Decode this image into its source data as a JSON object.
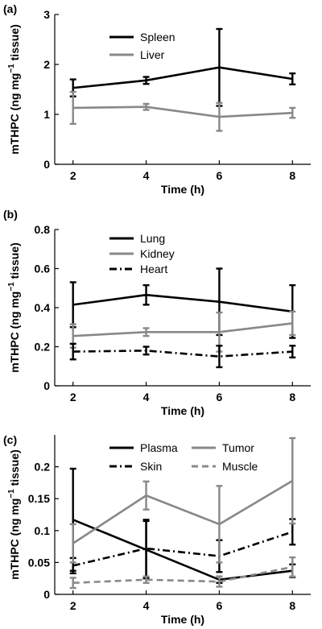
{
  "chart_data": [
    {
      "panel_label": "(a)",
      "type": "line",
      "xlabel": "Time (h)",
      "ylabel_main": "mTHPC (ng mg",
      "ylabel_sup": "−1",
      "ylabel_tail": " tissue)",
      "x": [
        2,
        4,
        6,
        8
      ],
      "xticks": [
        2,
        4,
        6,
        8
      ],
      "xlim": [
        1.5,
        8.5
      ],
      "ylim": [
        0,
        3
      ],
      "yticks": [
        0,
        1,
        2,
        3
      ],
      "ytick_labels": [
        "0",
        "1",
        "2",
        "3"
      ],
      "legend_placement": "top-left",
      "series": [
        {
          "name": "Spleen",
          "color": "#000000",
          "dash": "solid",
          "values": [
            1.53,
            1.68,
            1.94,
            1.71
          ],
          "errors": [
            0.17,
            0.07,
            0.77,
            0.11
          ]
        },
        {
          "name": "Liver",
          "color": "#888888",
          "dash": "solid",
          "values": [
            1.13,
            1.15,
            0.95,
            1.03
          ],
          "errors": [
            0.32,
            0.06,
            0.28,
            0.1
          ]
        }
      ]
    },
    {
      "panel_label": "(b)",
      "type": "line",
      "xlabel": "Time (h)",
      "ylabel_main": "mTHPC (ng mg",
      "ylabel_sup": "−1",
      "ylabel_tail": " tissue)",
      "x": [
        2,
        4,
        6,
        8
      ],
      "xticks": [
        2,
        4,
        6,
        8
      ],
      "xlim": [
        1.5,
        8.5
      ],
      "ylim": [
        0,
        0.8
      ],
      "yticks": [
        0,
        0.2,
        0.4,
        0.6,
        0.8
      ],
      "ytick_labels": [
        "0",
        "0.2",
        "0.4",
        "0.6",
        "0.8"
      ],
      "legend_placement": "top-left",
      "series": [
        {
          "name": "Lung",
          "color": "#000000",
          "dash": "solid",
          "values": [
            0.415,
            0.465,
            0.43,
            0.38
          ],
          "errors": [
            0.115,
            0.05,
            0.17,
            0.135
          ]
        },
        {
          "name": "Kidney",
          "color": "#888888",
          "dash": "solid",
          "values": [
            0.255,
            0.275,
            0.275,
            0.32
          ],
          "errors": [
            0.06,
            0.02,
            0.1,
            0.06
          ]
        },
        {
          "name": "Heart",
          "color": "#000000",
          "dash": "dashdot",
          "values": [
            0.175,
            0.18,
            0.15,
            0.175
          ],
          "errors": [
            0.04,
            0.02,
            0.055,
            0.03
          ]
        }
      ]
    },
    {
      "panel_label": "(c)",
      "type": "line",
      "xlabel": "Time (h)",
      "ylabel_main": "mTHPC (ng mg",
      "ylabel_sup": "−1",
      "ylabel_tail": " tissue)",
      "x": [
        2,
        4,
        6,
        8
      ],
      "xticks": [
        2,
        4,
        6,
        8
      ],
      "xlim": [
        1.5,
        8.5
      ],
      "ylim": [
        0,
        0.25
      ],
      "yticks": [
        0,
        0.05,
        0.1,
        0.15,
        0.2
      ],
      "ytick_labels": [
        "0",
        "0.05",
        "0.1",
        "0.15",
        "0.2"
      ],
      "legend_placement": "top",
      "series": [
        {
          "name": "Plasma",
          "color": "#000000",
          "dash": "solid",
          "values": [
            0.117,
            0.07,
            0.023,
            0.037
          ],
          "errors": [
            0.08,
            0.045,
            0.005,
            0.01
          ]
        },
        {
          "name": "Skin",
          "color": "#000000",
          "dash": "dashdot",
          "values": [
            0.045,
            0.072,
            0.06,
            0.098
          ],
          "errors": [
            0.012,
            0.045,
            0.025,
            0.02
          ]
        },
        {
          "name": "Tumor",
          "color": "#888888",
          "dash": "solid",
          "values": [
            0.08,
            0.155,
            0.11,
            0.178
          ],
          "errors": [
            0.03,
            0.022,
            0.06,
            0.067
          ]
        },
        {
          "name": "Muscle",
          "color": "#888888",
          "dash": "dash",
          "values": [
            0.018,
            0.023,
            0.02,
            0.043
          ],
          "errors": [
            0.008,
            0.005,
            0.008,
            0.015
          ]
        }
      ]
    }
  ]
}
